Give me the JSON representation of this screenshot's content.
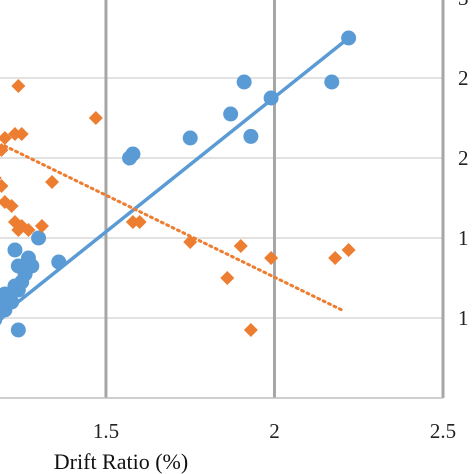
{
  "chart_data": {
    "type": "scatter",
    "xlabel": "Drift Ratio (%)",
    "xlim": [
      1.15,
      2.5
    ],
    "ylim": [
      0,
      5
    ],
    "x_ticks": [
      {
        "value": 1.5,
        "label": "1.5"
      },
      {
        "value": 2.0,
        "label": "2"
      },
      {
        "value": 2.5,
        "label": "2.5"
      }
    ],
    "y_gridlines": [
      1,
      2,
      3,
      4,
      5
    ],
    "right_tick_labels": [
      "3",
      "2",
      "2",
      "1",
      "1"
    ],
    "grid": true,
    "series": [
      {
        "color": "#5B9BD5",
        "marker": "circle",
        "points": [
          [
            1.15,
            0.85
          ],
          [
            1.16,
            0.95
          ],
          [
            1.17,
            0.98
          ],
          [
            1.18,
            1.05
          ],
          [
            1.19,
            1.15
          ],
          [
            1.2,
            1.1
          ],
          [
            1.21,
            1.25
          ],
          [
            1.22,
            1.2
          ],
          [
            1.2,
            1.3
          ],
          [
            1.23,
            1.4
          ],
          [
            1.24,
            1.35
          ],
          [
            1.25,
            1.45
          ],
          [
            1.26,
            1.55
          ],
          [
            1.24,
            1.65
          ],
          [
            1.28,
            1.65
          ],
          [
            1.23,
            1.85
          ],
          [
            1.27,
            1.75
          ],
          [
            1.3,
            2.0
          ],
          [
            1.36,
            1.7
          ],
          [
            1.24,
            0.85
          ],
          [
            1.57,
            3.0
          ],
          [
            1.58,
            3.05
          ],
          [
            1.75,
            3.25
          ],
          [
            1.87,
            3.55
          ],
          [
            1.91,
            3.95
          ],
          [
            1.93,
            3.27
          ],
          [
            1.99,
            3.75
          ],
          [
            2.17,
            3.95
          ],
          [
            2.22,
            4.5
          ]
        ],
        "trend": {
          "style": "solid",
          "from": [
            1.15,
            0.9
          ],
          "to": [
            2.22,
            4.5
          ]
        }
      },
      {
        "color": "#ED7D31",
        "marker": "diamond",
        "points": [
          [
            1.15,
            3.55
          ],
          [
            1.17,
            3.15
          ],
          [
            1.19,
            3.1
          ],
          [
            1.2,
            3.25
          ],
          [
            1.23,
            3.3
          ],
          [
            1.24,
            3.9
          ],
          [
            1.25,
            3.3
          ],
          [
            1.17,
            2.75
          ],
          [
            1.19,
            2.65
          ],
          [
            1.2,
            2.45
          ],
          [
            1.22,
            2.4
          ],
          [
            1.23,
            2.2
          ],
          [
            1.25,
            2.15
          ],
          [
            1.27,
            2.1
          ],
          [
            1.24,
            2.1
          ],
          [
            1.31,
            2.15
          ],
          [
            1.34,
            2.7
          ],
          [
            1.47,
            3.5
          ],
          [
            1.58,
            2.2
          ],
          [
            1.6,
            2.2
          ],
          [
            1.75,
            1.95
          ],
          [
            1.86,
            1.5
          ],
          [
            1.9,
            1.9
          ],
          [
            1.93,
            0.85
          ],
          [
            1.99,
            1.75
          ],
          [
            2.18,
            1.75
          ],
          [
            2.22,
            1.85
          ]
        ],
        "trend": {
          "style": "dotted",
          "from": [
            1.2,
            3.15
          ],
          "to": [
            2.2,
            1.1
          ]
        }
      }
    ]
  }
}
